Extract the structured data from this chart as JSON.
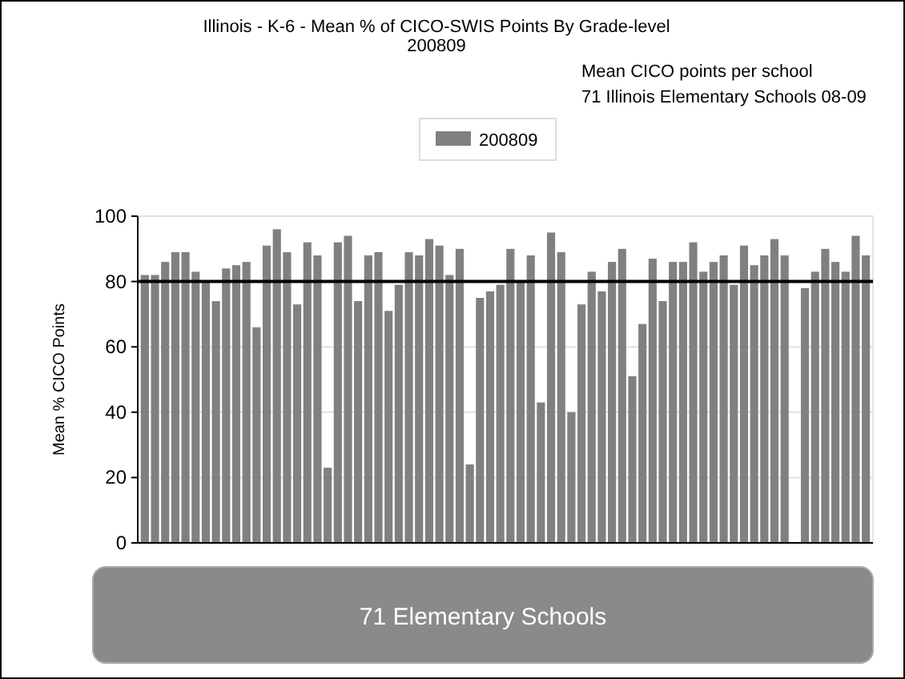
{
  "chart_data": {
    "type": "bar",
    "title": "Illinois - K-6 - Mean % of CICO-SWIS Points By Grade-level",
    "subtitle": "200809",
    "xlabel": "71 Elementary Schools",
    "ylabel": "Mean % CICO Points",
    "annotations": [
      "Mean CICO points per school",
      "71 Illinois Elementary Schools 08-09"
    ],
    "categories": [
      null,
      null,
      null,
      null,
      null,
      null,
      null,
      null,
      null,
      null,
      null,
      null,
      null,
      null,
      null,
      null,
      null,
      null,
      null,
      null,
      null,
      null,
      null,
      null,
      null,
      null,
      null,
      null,
      null,
      null,
      null,
      null,
      null,
      null,
      null,
      null,
      null,
      null,
      null,
      null,
      null,
      null,
      null,
      null,
      null,
      null,
      null,
      null,
      null,
      null,
      null,
      null,
      null,
      null,
      null,
      null,
      null,
      null,
      null,
      null,
      null,
      null,
      null,
      null,
      null,
      null,
      null,
      null,
      null,
      null,
      null,
      null
    ],
    "series": [
      {
        "name": "200809",
        "color": "#808080",
        "values": [
          82,
          82,
          86,
          89,
          89,
          83,
          80,
          74,
          84,
          85,
          86,
          66,
          91,
          96,
          89,
          73,
          92,
          88,
          23,
          92,
          94,
          74,
          88,
          89,
          71,
          79,
          89,
          88,
          93,
          91,
          82,
          90,
          24,
          75,
          77,
          79,
          90,
          80,
          88,
          43,
          95,
          89,
          40,
          73,
          83,
          77,
          86,
          90,
          51,
          67,
          87,
          74,
          86,
          86,
          92,
          83,
          86,
          88,
          79,
          91,
          85,
          88,
          93,
          88,
          null,
          78,
          83,
          90,
          86,
          83,
          94,
          88
        ]
      }
    ],
    "ylim": [
      0,
      100
    ],
    "yticks": [
      0,
      20,
      40,
      60,
      80,
      100
    ],
    "grid": "y",
    "legend": "top",
    "ref_lines": [
      {
        "axis": "y",
        "value": 80,
        "color": "#000000"
      }
    ]
  }
}
